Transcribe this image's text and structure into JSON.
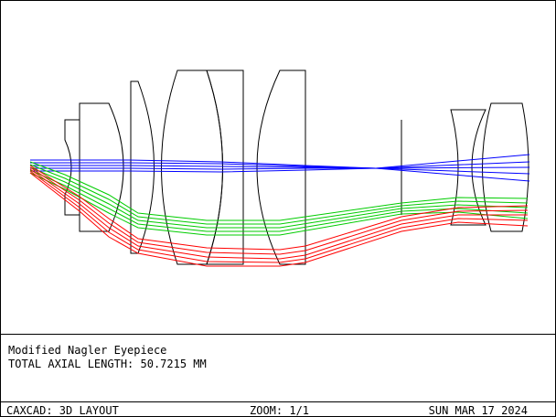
{
  "layout_title": "Modified Nagler Eyepiece",
  "axial_length": "TOTAL AXIAL LENGTH: 50.7215 MM",
  "footer": {
    "program": "CAXCAD: 3D LAYOUT",
    "zoom": "ZOOM: 1/1",
    "date": "SUN MAR 17 2024"
  },
  "colors": {
    "lens_outline": "#000000",
    "field_axial": "#0000ff",
    "field_mid": "#00cc00",
    "field_edge": "#ff0000",
    "background": "#ffffff"
  }
}
